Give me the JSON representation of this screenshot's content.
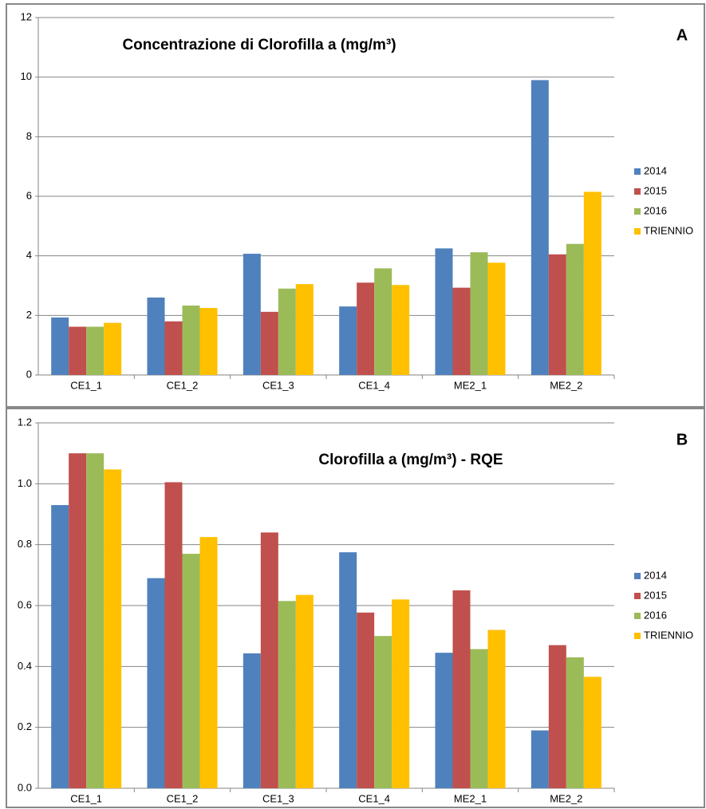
{
  "chart_data": [
    {
      "type": "bar",
      "panel_label": "A",
      "title": "Concentrazione di Clorofilla a (mg/m³)",
      "categories": [
        "CE1_1",
        "CE1_2",
        "CE1_3",
        "CE1_4",
        "ME2_1",
        "ME2_2"
      ],
      "series": [
        {
          "name": "2014",
          "color": "#4f81bd",
          "values": [
            1.93,
            2.6,
            4.07,
            2.3,
            4.25,
            9.9
          ]
        },
        {
          "name": "2015",
          "color": "#c0504d",
          "values": [
            1.62,
            1.8,
            2.12,
            3.1,
            2.93,
            4.05
          ]
        },
        {
          "name": "2016",
          "color": "#9bbb59",
          "values": [
            1.62,
            2.33,
            2.9,
            3.58,
            4.12,
            4.4
          ]
        },
        {
          "name": "TRIENNIO",
          "color": "#ffc000",
          "values": [
            1.75,
            2.25,
            3.05,
            3.02,
            3.77,
            6.15
          ]
        }
      ],
      "ylim": [
        0,
        12
      ],
      "yticks": [
        0,
        2,
        4,
        6,
        8,
        10,
        12
      ],
      "grid": true,
      "legend": "right"
    },
    {
      "type": "bar",
      "panel_label": "B",
      "title": "Clorofilla a (mg/m³) - RQE",
      "categories": [
        "CE1_1",
        "CE1_2",
        "CE1_3",
        "CE1_4",
        "ME2_1",
        "ME2_2"
      ],
      "series": [
        {
          "name": "2014",
          "color": "#4f81bd",
          "values": [
            0.93,
            0.69,
            0.443,
            0.775,
            0.445,
            0.19
          ]
        },
        {
          "name": "2015",
          "color": "#c0504d",
          "values": [
            1.1,
            1.005,
            0.84,
            0.577,
            0.65,
            0.47
          ]
        },
        {
          "name": "2016",
          "color": "#9bbb59",
          "values": [
            1.1,
            0.77,
            0.615,
            0.5,
            0.457,
            0.43
          ]
        },
        {
          "name": "TRIENNIO",
          "color": "#ffc000",
          "values": [
            1.047,
            0.825,
            0.635,
            0.62,
            0.52,
            0.366
          ]
        }
      ],
      "ylim": [
        0,
        1.2
      ],
      "yticks": [
        {
          "value": 0,
          "label": "0.0"
        },
        0.2,
        0.4,
        0.6,
        0.8,
        {
          "value": 1,
          "label": "1.0"
        },
        1.2
      ],
      "grid": true,
      "legend": "right"
    }
  ]
}
